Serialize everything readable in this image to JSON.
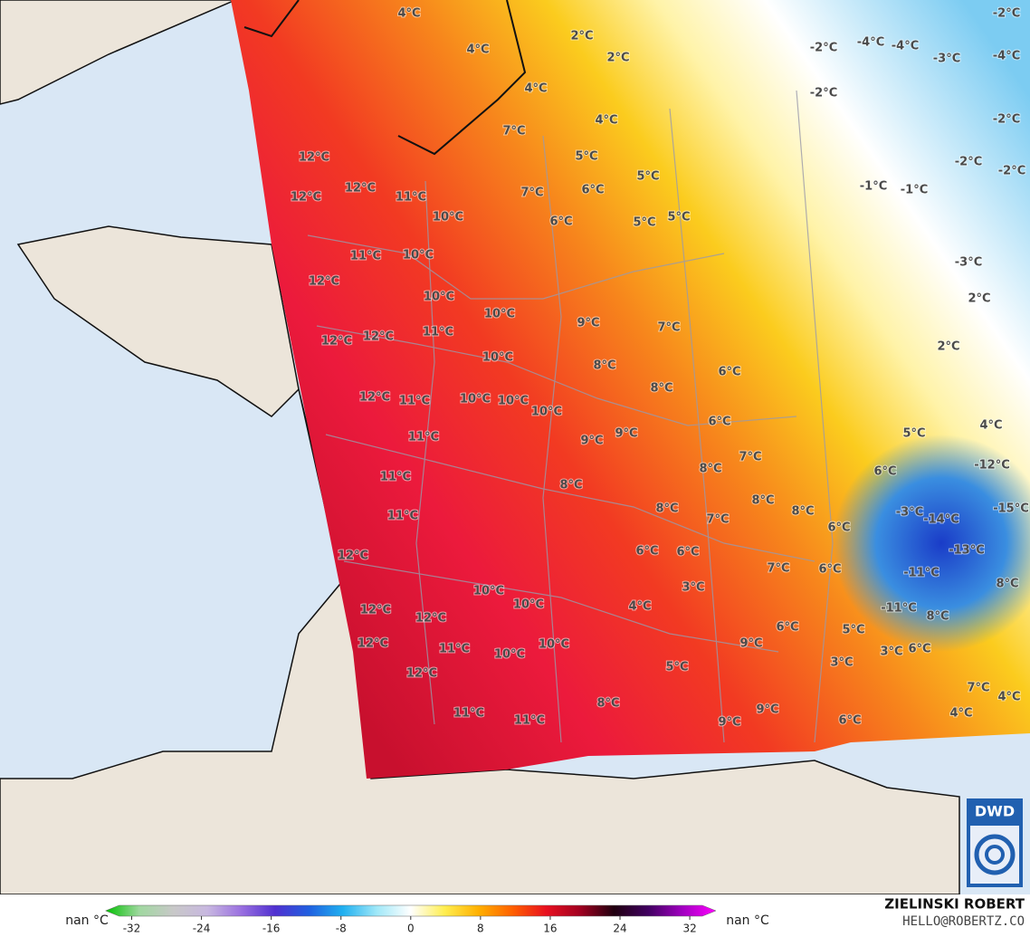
{
  "map": {
    "temperature_labels": [
      "4°C",
      "2°C",
      "-2°C",
      "4°C",
      "2°C",
      "-2°C",
      "-4°C",
      "-4°C",
      "-3°C",
      "-4°C",
      "4°C",
      "-2°C",
      "-2°C",
      "4°C",
      "7°C",
      "12°C",
      "5°C",
      "-2°C",
      "-2°C",
      "12°C",
      "11°C",
      "7°C",
      "6°C",
      "5°C",
      "-1°C",
      "-1°C",
      "12°C",
      "10°C",
      "6°C",
      "5°C",
      "5°C",
      "11°C",
      "10°C",
      "-3°C",
      "12°C",
      "10°C",
      "2°C",
      "10°C",
      "9°C",
      "7°C",
      "12°C",
      "12°C",
      "11°C",
      "2°C",
      "10°C",
      "8°C",
      "6°C",
      "12°C",
      "11°C",
      "10°C",
      "10°C",
      "10°C",
      "8°C",
      "6°C",
      "4°C",
      "11°C",
      "9°C",
      "9°C",
      "5°C",
      "7°C",
      "8°C",
      "-12°C",
      "6°C",
      "11°C",
      "8°C",
      "8°C",
      "8°C",
      "8°C",
      "-15°C",
      "11°C",
      "7°C",
      "-3°C",
      "-14°C",
      "6°C",
      "12°C",
      "6°C",
      "6°C",
      "-13°C",
      "8°C",
      "7°C",
      "6°C",
      "-11°C",
      "10°C",
      "10°C",
      "3°C",
      "4°C",
      "-11°C",
      "12°C",
      "12°C",
      "8°C",
      "6°C",
      "5°C",
      "12°C",
      "11°C",
      "10°C",
      "10°C",
      "9°C",
      "3°C",
      "6°C",
      "12°C",
      "5°C",
      "3°C",
      "7°C",
      "4°C",
      "8°C",
      "4°C",
      "11°C",
      "9°C",
      "11°C",
      "9°C",
      "6°C"
    ],
    "colorbar": {
      "left_label": "nan °C",
      "right_label": "nan °C",
      "lim": [
        -35,
        35
      ],
      "ticks": [
        -32,
        -24,
        -16,
        -8,
        0,
        8,
        16,
        24,
        32
      ],
      "colors": [
        "#00c000",
        "#a0d8a0",
        "#c8c8c8",
        "#c8b8e0",
        "#9a70e0",
        "#5030d0",
        "#2060e0",
        "#20b0f0",
        "#a0e8f8",
        "#ffffff",
        "#ffee50",
        "#ffb000",
        "#ff6000",
        "#e81020",
        "#a00020",
        "#200010",
        "#400060",
        "#a000c0",
        "#ff00ff"
      ]
    },
    "credit": {
      "name": "ZIELINSKI ROBERT",
      "contact": "HELLO@ROBERTZ.CO"
    },
    "logo": "DWD"
  }
}
